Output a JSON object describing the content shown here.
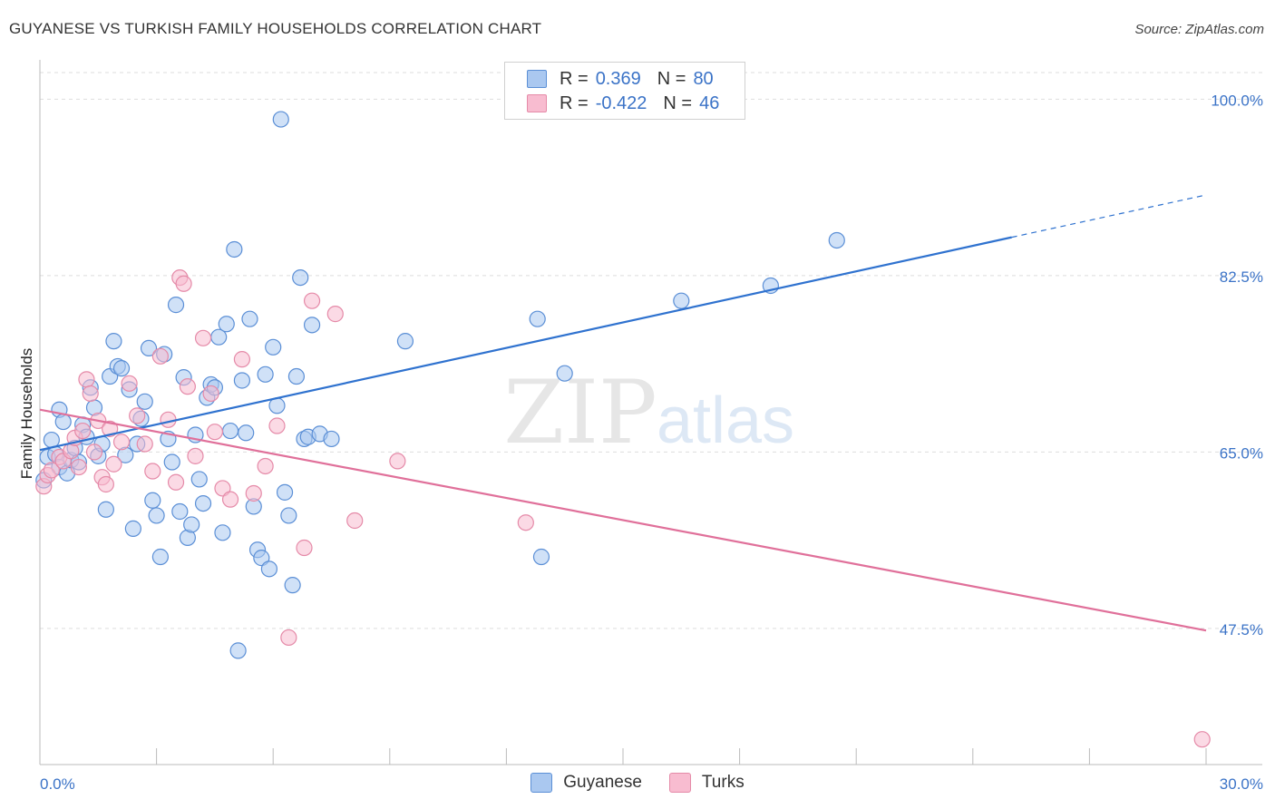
{
  "title": "GUYANESE VS TURKISH FAMILY HOUSEHOLDS CORRELATION CHART",
  "source": "Source: ZipAtlas.com",
  "colors": {
    "guyanese_fill": "#aac8f0",
    "guyanese_stroke": "#5b8fd6",
    "guyanese_line": "#2f72cf",
    "turks_fill": "#f8bcd0",
    "turks_stroke": "#e58aa8",
    "turks_line": "#e0709a",
    "axis_label": "#3b73c7",
    "grid": "#dddddd"
  },
  "legend": {
    "rows": [
      {
        "r_label": "R =",
        "r_value": "0.369",
        "n_label": "N =",
        "n_value": "80",
        "series": "guyanese"
      },
      {
        "r_label": "R =",
        "r_value": "-0.422",
        "n_label": "N =",
        "n_value": "46",
        "series": "turks"
      }
    ]
  },
  "bottom_legend": [
    "Guyanese",
    "Turks"
  ],
  "chart_data": {
    "type": "scatter",
    "title": "GUYANESE VS TURKISH FAMILY HOUSEHOLDS CORRELATION CHART",
    "xlabel": "",
    "ylabel": "Family Households",
    "xlim": [
      0,
      30
    ],
    "ylim": [
      34,
      103
    ],
    "x_tick_labels": [
      "0.0%",
      "30.0%"
    ],
    "y_ticks": [
      47.5,
      65.0,
      82.5,
      100.0
    ],
    "y_tick_labels": [
      "47.5%",
      "65.0%",
      "82.5%",
      "100.0%"
    ],
    "grid": true,
    "watermark": "ZIPatlas",
    "series": [
      {
        "name": "Guyanese",
        "r": 0.369,
        "n": 80,
        "trend": {
          "x": [
            0,
            25.0
          ],
          "y": [
            65.2,
            86.3
          ],
          "dashed_to": [
            30,
            90.5
          ]
        },
        "points": [
          [
            0.1,
            62.2
          ],
          [
            0.2,
            64.5
          ],
          [
            0.3,
            66.2
          ],
          [
            0.4,
            64.8
          ],
          [
            0.5,
            69.2
          ],
          [
            0.5,
            63.5
          ],
          [
            0.6,
            68.0
          ],
          [
            0.7,
            62.9
          ],
          [
            0.8,
            64.2
          ],
          [
            0.9,
            65.4
          ],
          [
            1.0,
            64.0
          ],
          [
            1.1,
            67.7
          ],
          [
            1.2,
            66.5
          ],
          [
            1.3,
            71.4
          ],
          [
            1.4,
            69.4
          ],
          [
            1.5,
            64.6
          ],
          [
            1.6,
            65.8
          ],
          [
            1.7,
            59.3
          ],
          [
            1.8,
            72.5
          ],
          [
            1.9,
            76.0
          ],
          [
            2.0,
            73.5
          ],
          [
            2.1,
            73.3
          ],
          [
            2.2,
            64.7
          ],
          [
            2.3,
            71.2
          ],
          [
            2.4,
            57.4
          ],
          [
            2.5,
            65.8
          ],
          [
            2.6,
            68.3
          ],
          [
            2.7,
            70.0
          ],
          [
            2.8,
            75.3
          ],
          [
            2.9,
            60.2
          ],
          [
            3.0,
            58.7
          ],
          [
            3.1,
            54.6
          ],
          [
            3.2,
            74.7
          ],
          [
            3.3,
            66.3
          ],
          [
            3.4,
            64.0
          ],
          [
            3.5,
            79.6
          ],
          [
            3.6,
            59.1
          ],
          [
            3.7,
            72.4
          ],
          [
            3.8,
            56.5
          ],
          [
            3.9,
            57.8
          ],
          [
            4.0,
            66.7
          ],
          [
            4.1,
            62.3
          ],
          [
            4.2,
            59.9
          ],
          [
            4.3,
            70.4
          ],
          [
            4.4,
            71.7
          ],
          [
            4.5,
            71.4
          ],
          [
            4.6,
            76.4
          ],
          [
            4.7,
            57.0
          ],
          [
            4.8,
            77.7
          ],
          [
            4.9,
            67.1
          ],
          [
            5.0,
            85.1
          ],
          [
            5.1,
            45.3
          ],
          [
            5.2,
            72.1
          ],
          [
            5.3,
            66.9
          ],
          [
            5.4,
            78.2
          ],
          [
            5.5,
            59.6
          ],
          [
            5.6,
            55.3
          ],
          [
            5.7,
            54.5
          ],
          [
            5.8,
            72.7
          ],
          [
            5.9,
            53.4
          ],
          [
            6.0,
            75.4
          ],
          [
            6.1,
            69.6
          ],
          [
            6.2,
            98.0
          ],
          [
            6.3,
            61.0
          ],
          [
            6.4,
            58.7
          ],
          [
            6.5,
            51.8
          ],
          [
            6.6,
            72.5
          ],
          [
            6.7,
            82.3
          ],
          [
            6.8,
            66.3
          ],
          [
            6.9,
            66.5
          ],
          [
            7.0,
            77.6
          ],
          [
            7.2,
            66.8
          ],
          [
            7.5,
            66.3
          ],
          [
            9.4,
            76.0
          ],
          [
            12.8,
            78.2
          ],
          [
            12.9,
            54.6
          ],
          [
            13.5,
            72.8
          ],
          [
            16.5,
            80.0
          ],
          [
            18.8,
            81.5
          ],
          [
            20.5,
            86.0
          ]
        ]
      },
      {
        "name": "Turks",
        "r": -0.422,
        "n": 46,
        "trend": {
          "x": [
            0,
            30
          ],
          "y": [
            69.2,
            47.3
          ]
        },
        "points": [
          [
            0.1,
            61.6
          ],
          [
            0.2,
            62.7
          ],
          [
            0.3,
            63.2
          ],
          [
            0.5,
            64.5
          ],
          [
            0.6,
            64.1
          ],
          [
            0.8,
            65.1
          ],
          [
            0.9,
            66.4
          ],
          [
            1.0,
            63.5
          ],
          [
            1.1,
            67.1
          ],
          [
            1.2,
            72.2
          ],
          [
            1.3,
            70.8
          ],
          [
            1.4,
            65.0
          ],
          [
            1.5,
            68.1
          ],
          [
            1.6,
            62.5
          ],
          [
            1.7,
            61.8
          ],
          [
            1.8,
            67.3
          ],
          [
            1.9,
            63.8
          ],
          [
            2.1,
            66.0
          ],
          [
            2.3,
            71.8
          ],
          [
            2.5,
            68.6
          ],
          [
            2.7,
            65.8
          ],
          [
            2.9,
            63.1
          ],
          [
            3.1,
            74.5
          ],
          [
            3.3,
            68.2
          ],
          [
            3.5,
            62.0
          ],
          [
            3.6,
            82.3
          ],
          [
            3.7,
            81.7
          ],
          [
            3.8,
            71.5
          ],
          [
            4.0,
            64.6
          ],
          [
            4.2,
            76.3
          ],
          [
            4.4,
            70.8
          ],
          [
            4.5,
            67.0
          ],
          [
            4.7,
            61.4
          ],
          [
            4.9,
            60.3
          ],
          [
            5.2,
            74.2
          ],
          [
            5.5,
            60.9
          ],
          [
            5.8,
            63.6
          ],
          [
            6.1,
            67.6
          ],
          [
            6.4,
            46.6
          ],
          [
            6.8,
            55.5
          ],
          [
            7.0,
            80.0
          ],
          [
            7.6,
            78.7
          ],
          [
            8.1,
            58.2
          ],
          [
            9.2,
            64.1
          ],
          [
            12.5,
            58.0
          ],
          [
            29.9,
            36.5
          ]
        ]
      }
    ]
  }
}
